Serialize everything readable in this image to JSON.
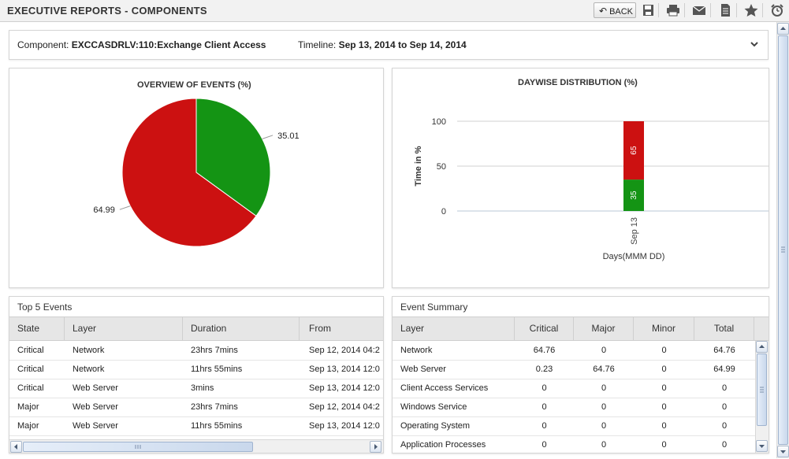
{
  "header": {
    "title": "EXECUTIVE REPORTS - COMPONENTS",
    "back_label": "BACK"
  },
  "toolbar_icons": [
    "save-icon",
    "print-icon",
    "email-icon",
    "document-icon",
    "star-icon",
    "alarm-clock-icon"
  ],
  "filter": {
    "component_label": "Component:",
    "component_value": "EXCCASDRLV:110:Exchange Client Access",
    "timeline_label": "Timeline:",
    "timeline_value": "Sep 13, 2014 to Sep 14, 2014"
  },
  "overview_chart": {
    "title": "OVERVIEW OF EVENTS (%)",
    "chart_data": {
      "type": "pie",
      "values": [
        35.01,
        64.99
      ],
      "labels": [
        "35.01",
        "64.99"
      ],
      "colors": [
        "#149414",
        "#cc1111"
      ]
    }
  },
  "daywise_chart": {
    "title": "DAYWISE DISTRIBUTION (%)",
    "chart_data": {
      "type": "bar",
      "stacked": true,
      "categories": [
        "Sep 13"
      ],
      "series": [
        {
          "values": [
            35
          ],
          "color": "#149414"
        },
        {
          "values": [
            65
          ],
          "color": "#cc1111"
        }
      ],
      "ylabel": "Time in %",
      "xlabel": "Days(MMM DD)",
      "yticks": [
        "100",
        "50",
        "0"
      ],
      "ylim": [
        0,
        100
      ],
      "grid": true
    }
  },
  "top_events": {
    "title": "Top 5 Events",
    "columns": [
      "State",
      "Layer",
      "Duration",
      "From"
    ],
    "rows": [
      [
        "Critical",
        "Network",
        "23hrs 7mins",
        "Sep 12, 2014 04:2"
      ],
      [
        "Critical",
        "Network",
        "11hrs 55mins",
        "Sep 13, 2014 12:0"
      ],
      [
        "Critical",
        "Web Server",
        "3mins",
        "Sep 13, 2014 12:0"
      ],
      [
        "Major",
        "Web Server",
        "23hrs 7mins",
        "Sep 12, 2014 04:2"
      ],
      [
        "Major",
        "Web Server",
        "11hrs 55mins",
        "Sep 13, 2014 12:0"
      ]
    ]
  },
  "event_summary": {
    "title": "Event Summary",
    "columns": [
      "Layer",
      "Critical",
      "Major",
      "Minor",
      "Total"
    ],
    "rows": [
      [
        "Network",
        "64.76",
        "0",
        "0",
        "64.76"
      ],
      [
        "Web Server",
        "0.23",
        "64.76",
        "0",
        "64.99"
      ],
      [
        "Client Access Services",
        "0",
        "0",
        "0",
        "0"
      ],
      [
        "Windows Service",
        "0",
        "0",
        "0",
        "0"
      ],
      [
        "Operating System",
        "0",
        "0",
        "0",
        "0"
      ],
      [
        "Application Processes",
        "0",
        "0",
        "0",
        "0"
      ]
    ]
  }
}
